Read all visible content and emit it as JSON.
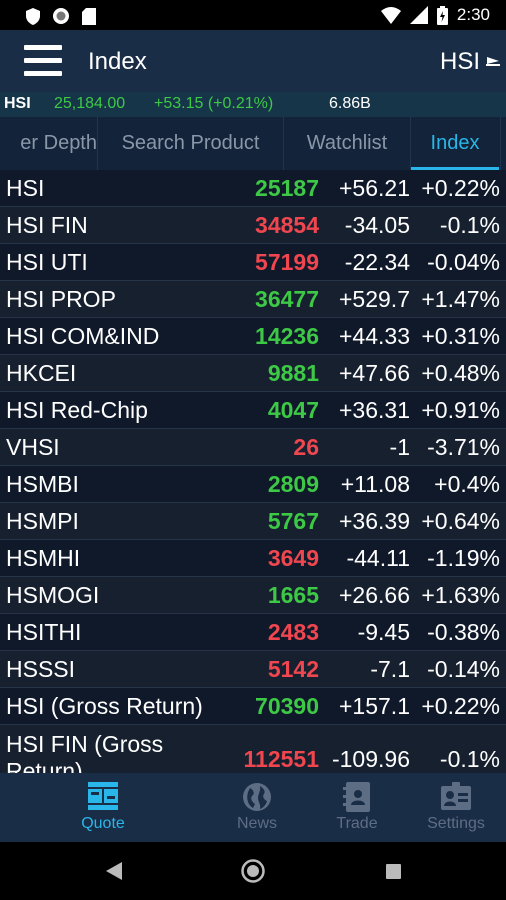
{
  "status_bar": {
    "time": "2:30"
  },
  "app_bar": {
    "title": "Index",
    "symbol": "HSI"
  },
  "ticker": {
    "symbol": "HSI",
    "price": "25,184.00",
    "change": "+53.15 (+0.21%)",
    "turnover": "6.86B"
  },
  "tabs": [
    {
      "label": "er Depth"
    },
    {
      "label": "Search Product"
    },
    {
      "label": "Watchlist"
    },
    {
      "label": "Index"
    }
  ],
  "rows": [
    {
      "name": "HSI",
      "value": "25187",
      "change": "+56.21",
      "percent": "+0.22%",
      "trend": "up"
    },
    {
      "name": "HSI FIN",
      "value": "34854",
      "change": "-34.05",
      "percent": "-0.1%",
      "trend": "down"
    },
    {
      "name": "HSI UTI",
      "value": "57199",
      "change": "-22.34",
      "percent": "-0.04%",
      "trend": "down"
    },
    {
      "name": "HSI PROP",
      "value": "36477",
      "change": "+529.7",
      "percent": "+1.47%",
      "trend": "up"
    },
    {
      "name": "HSI COM&IND",
      "value": "14236",
      "change": "+44.33",
      "percent": "+0.31%",
      "trend": "up"
    },
    {
      "name": "HKCEI",
      "value": "9881",
      "change": "+47.66",
      "percent": "+0.48%",
      "trend": "up"
    },
    {
      "name": "HSI Red-Chip",
      "value": "4047",
      "change": "+36.31",
      "percent": "+0.91%",
      "trend": "up"
    },
    {
      "name": "VHSI",
      "value": "26",
      "change": "-1",
      "percent": "-3.71%",
      "trend": "down"
    },
    {
      "name": "HSMBI",
      "value": "2809",
      "change": "+11.08",
      "percent": "+0.4%",
      "trend": "up"
    },
    {
      "name": "HSMPI",
      "value": "5767",
      "change": "+36.39",
      "percent": "+0.64%",
      "trend": "up"
    },
    {
      "name": "HSMHI",
      "value": "3649",
      "change": "-44.11",
      "percent": "-1.19%",
      "trend": "down"
    },
    {
      "name": "HSMOGI",
      "value": "1665",
      "change": "+26.66",
      "percent": "+1.63%",
      "trend": "up"
    },
    {
      "name": "HSITHI",
      "value": "2483",
      "change": "-9.45",
      "percent": "-0.38%",
      "trend": "down"
    },
    {
      "name": "HSSSI",
      "value": "5142",
      "change": "-7.1",
      "percent": "-0.14%",
      "trend": "down"
    },
    {
      "name": "HSI (Gross Return)",
      "value": "70390",
      "change": "+157.1",
      "percent": "+0.22%",
      "trend": "up"
    },
    {
      "name": "HSI FIN (Gross",
      "name2": "Return)",
      "value": "112551",
      "change": "-109.96",
      "percent": "-0.1%",
      "trend": "down"
    }
  ],
  "bottom_nav": [
    {
      "label": "Quote",
      "icon": "quote-icon"
    },
    {
      "label": "News",
      "icon": "globe-icon"
    },
    {
      "label": "Trade",
      "icon": "trade-icon"
    },
    {
      "label": "Settings",
      "icon": "settings-icon"
    }
  ],
  "colors": {
    "up": "#3dc946",
    "down": "#f0464f",
    "accent": "#29b6e8",
    "bar": "#1a2d47"
  }
}
